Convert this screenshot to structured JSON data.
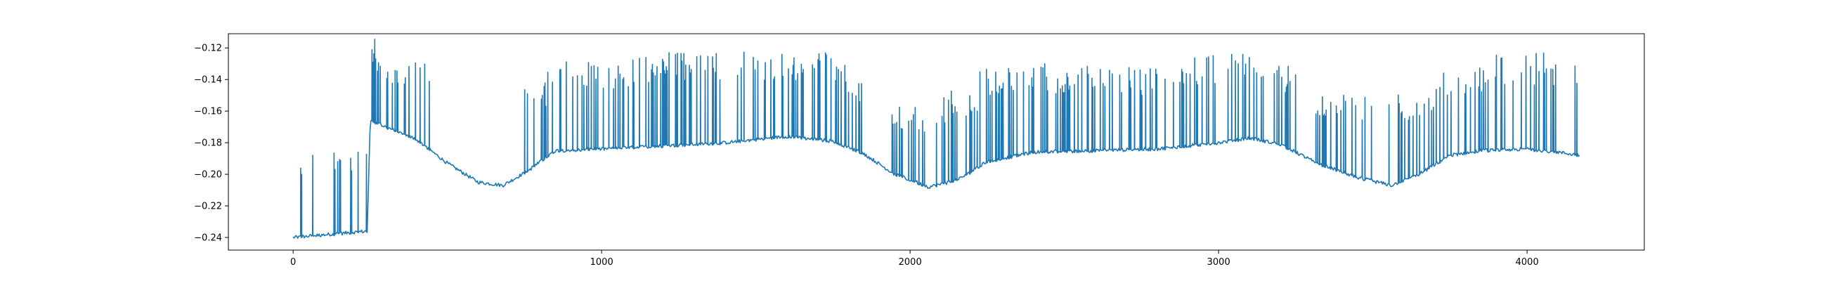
{
  "chart_data": {
    "type": "line",
    "title": "",
    "xlabel": "",
    "ylabel": "",
    "xlim": [
      -210,
      4380
    ],
    "ylim": [
      -0.248,
      -0.111
    ],
    "x_ticks": [
      0,
      1000,
      2000,
      3000,
      4000
    ],
    "x_tick_labels": [
      "0",
      "1000",
      "2000",
      "3000",
      "4000"
    ],
    "y_ticks": [
      -0.24,
      -0.22,
      -0.2,
      -0.18,
      -0.16,
      -0.14,
      -0.12
    ],
    "y_tick_labels": [
      "−0.24",
      "−0.22",
      "−0.20",
      "−0.18",
      "−0.16",
      "−0.14",
      "−0.12"
    ],
    "grid": false,
    "legend": "none",
    "series": [
      {
        "color": "#1f77b4",
        "x_start": 0,
        "x_end": 4170,
        "baseline": [
          [
            0,
            -0.24
          ],
          [
            240,
            -0.236
          ],
          [
            250,
            -0.166
          ],
          [
            400,
            -0.178
          ],
          [
            500,
            -0.193
          ],
          [
            600,
            -0.205
          ],
          [
            680,
            -0.207
          ],
          [
            760,
            -0.198
          ],
          [
            850,
            -0.185
          ],
          [
            1000,
            -0.184
          ],
          [
            1200,
            -0.182
          ],
          [
            1400,
            -0.18
          ],
          [
            1600,
            -0.176
          ],
          [
            1750,
            -0.179
          ],
          [
            1850,
            -0.187
          ],
          [
            1950,
            -0.2
          ],
          [
            2060,
            -0.208
          ],
          [
            2150,
            -0.204
          ],
          [
            2250,
            -0.192
          ],
          [
            2400,
            -0.186
          ],
          [
            2600,
            -0.185
          ],
          [
            2800,
            -0.184
          ],
          [
            3000,
            -0.18
          ],
          [
            3100,
            -0.177
          ],
          [
            3200,
            -0.181
          ],
          [
            3320,
            -0.193
          ],
          [
            3450,
            -0.202
          ],
          [
            3560,
            -0.207
          ],
          [
            3650,
            -0.2
          ],
          [
            3750,
            -0.188
          ],
          [
            3850,
            -0.185
          ],
          [
            4000,
            -0.184
          ],
          [
            4100,
            -0.186
          ],
          [
            4170,
            -0.188
          ]
        ],
        "spike_ranges": [
          [
            10,
            30,
            -0.185
          ],
          [
            60,
            90,
            -0.185
          ],
          [
            130,
            240,
            -0.181
          ],
          [
            250,
            270,
            -0.112
          ],
          [
            270,
            450,
            -0.128
          ],
          [
            750,
            820,
            -0.142
          ],
          [
            820,
            1200,
            -0.126
          ],
          [
            1200,
            1560,
            -0.122
          ],
          [
            1560,
            1800,
            -0.122
          ],
          [
            1800,
            1850,
            -0.142
          ],
          [
            1940,
            2100,
            -0.155
          ],
          [
            2100,
            2220,
            -0.147
          ],
          [
            2220,
            2600,
            -0.13
          ],
          [
            2600,
            2900,
            -0.132
          ],
          [
            2900,
            3200,
            -0.124
          ],
          [
            3200,
            3250,
            -0.13
          ],
          [
            3300,
            3500,
            -0.147
          ],
          [
            3550,
            3700,
            -0.148
          ],
          [
            3700,
            3900,
            -0.13
          ],
          [
            3900,
            4170,
            -0.122
          ]
        ]
      }
    ]
  }
}
